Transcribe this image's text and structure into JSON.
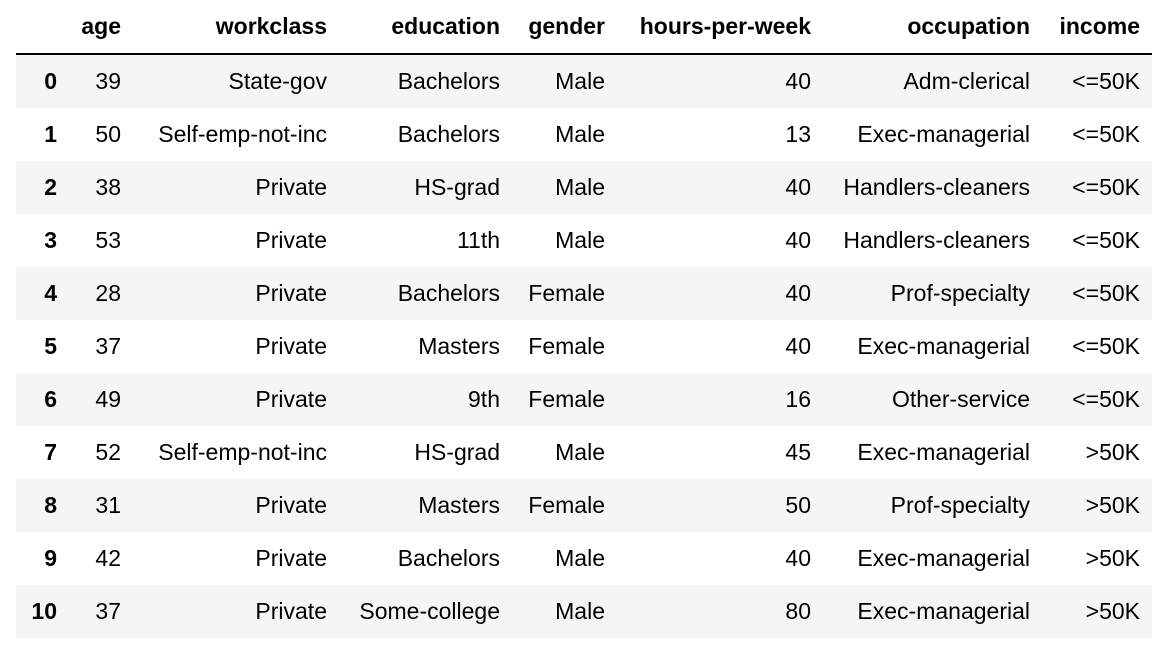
{
  "table": {
    "index_header": "",
    "columns": [
      "age",
      "workclass",
      "education",
      "gender",
      "hours-per-week",
      "occupation",
      "income"
    ],
    "rows": [
      {
        "index": "0",
        "cells": [
          "39",
          "State-gov",
          "Bachelors",
          "Male",
          "40",
          "Adm-clerical",
          "<=50K"
        ]
      },
      {
        "index": "1",
        "cells": [
          "50",
          "Self-emp-not-inc",
          "Bachelors",
          "Male",
          "13",
          "Exec-managerial",
          "<=50K"
        ]
      },
      {
        "index": "2",
        "cells": [
          "38",
          "Private",
          "HS-grad",
          "Male",
          "40",
          "Handlers-cleaners",
          "<=50K"
        ]
      },
      {
        "index": "3",
        "cells": [
          "53",
          "Private",
          "11th",
          "Male",
          "40",
          "Handlers-cleaners",
          "<=50K"
        ]
      },
      {
        "index": "4",
        "cells": [
          "28",
          "Private",
          "Bachelors",
          "Female",
          "40",
          "Prof-specialty",
          "<=50K"
        ]
      },
      {
        "index": "5",
        "cells": [
          "37",
          "Private",
          "Masters",
          "Female",
          "40",
          "Exec-managerial",
          "<=50K"
        ]
      },
      {
        "index": "6",
        "cells": [
          "49",
          "Private",
          "9th",
          "Female",
          "16",
          "Other-service",
          "<=50K"
        ]
      },
      {
        "index": "7",
        "cells": [
          "52",
          "Self-emp-not-inc",
          "HS-grad",
          "Male",
          "45",
          "Exec-managerial",
          ">50K"
        ]
      },
      {
        "index": "8",
        "cells": [
          "31",
          "Private",
          "Masters",
          "Female",
          "50",
          "Prof-specialty",
          ">50K"
        ]
      },
      {
        "index": "9",
        "cells": [
          "42",
          "Private",
          "Bachelors",
          "Male",
          "40",
          "Exec-managerial",
          ">50K"
        ]
      },
      {
        "index": "10",
        "cells": [
          "37",
          "Private",
          "Some-college",
          "Male",
          "80",
          "Exec-managerial",
          ">50K"
        ]
      }
    ]
  },
  "colors": {
    "striped_row": "#f5f5f5",
    "plain_row": "#ffffff",
    "header_rule": "#000000"
  }
}
